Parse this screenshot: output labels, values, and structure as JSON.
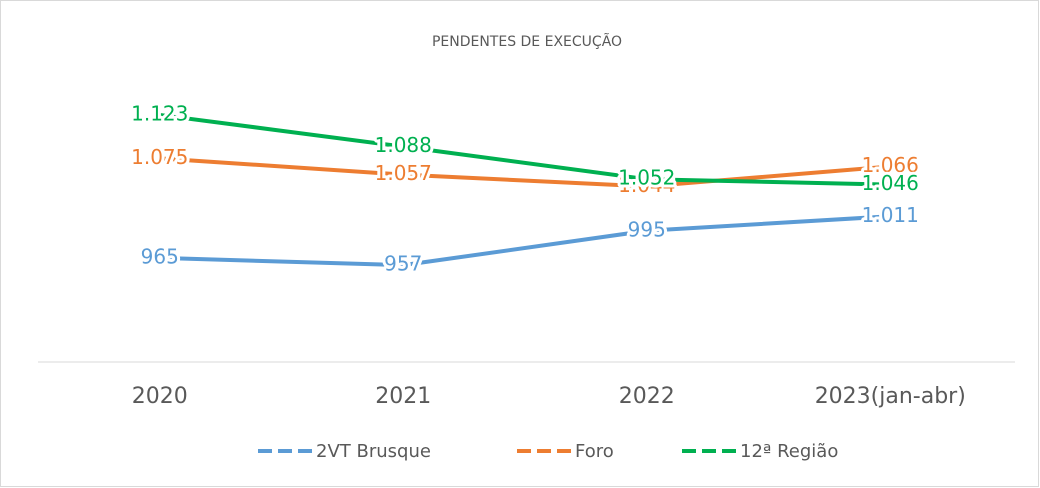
{
  "chart_data": {
    "type": "line",
    "title": "PENDENTES DE EXECUÇÃO",
    "categories": [
      "2020",
      "2021",
      "2022",
      "2023(jan-abr)"
    ],
    "series": [
      {
        "name": "2VT Brusque",
        "color": "#5b9bd5",
        "values": [
          965,
          957,
          995,
          1011
        ],
        "value_labels": [
          "965",
          "957",
          "995",
          "1.011"
        ]
      },
      {
        "name": "Foro",
        "color": "#ed7d31",
        "values": [
          1075,
          1057,
          1044,
          1066
        ],
        "value_labels": [
          "1.075",
          "1.057",
          "1.044",
          "1.066"
        ]
      },
      {
        "name": "12ª Região",
        "color": "#00b050",
        "values": [
          1123,
          1088,
          1052,
          1046
        ],
        "value_labels": [
          "1.123",
          "1.088",
          "1.052",
          "1.046"
        ]
      }
    ],
    "ylim": [
      850,
      1150
    ],
    "grid": false,
    "legend": "bottom"
  }
}
